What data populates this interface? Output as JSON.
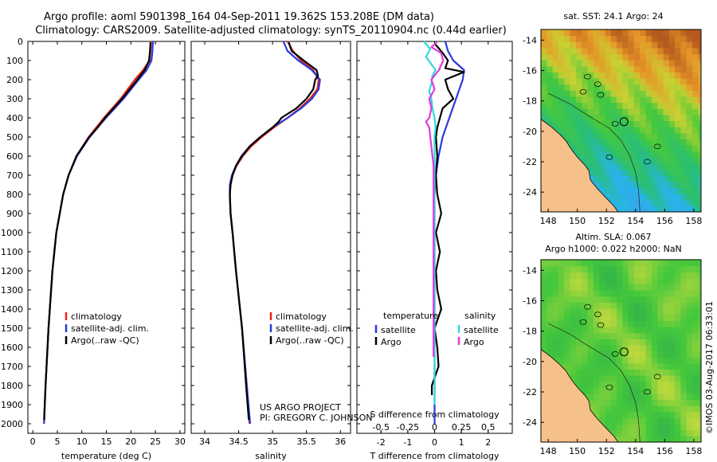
{
  "title": {
    "line1": "Argo profile: aoml 5901398_164 04-Sep-2011 19.362S 153.208E (DM data)",
    "line2": "Climatology: CARS2009. Satellite-adjusted climatology: synTS_20110904.nc (0.44d earlier)"
  },
  "colors": {
    "climatology": "#e8231b",
    "satellite": "#2a3bd8",
    "argo": "#000000",
    "salinity_sat": "#2fd8e0",
    "salinity_argo": "#e23ad8"
  },
  "chart_data": [
    {
      "type": "line",
      "name": "temperature-profile",
      "xlabel": "temperature (deg C)",
      "ylim": [
        0,
        2050
      ],
      "xlim": [
        -1,
        31
      ],
      "xticks": [
        0,
        5,
        10,
        15,
        20,
        25,
        30
      ],
      "yticks": [
        0,
        100,
        200,
        300,
        400,
        500,
        600,
        700,
        800,
        900,
        1000,
        1100,
        1200,
        1300,
        1400,
        1500,
        1600,
        1700,
        1800,
        1900,
        2000
      ],
      "legend": [
        "climatology",
        "satellite-adj. clim.",
        "Argo(..raw -QC)"
      ],
      "series": [
        {
          "name": "climatology",
          "depth": [
            0,
            50,
            100,
            150,
            200,
            300,
            400,
            500,
            600,
            700,
            800,
            1000,
            1200,
            1500,
            1800,
            2000
          ],
          "value": [
            24.1,
            24.0,
            23.8,
            22.5,
            20.8,
            17.9,
            14.5,
            11.4,
            8.9,
            7.3,
            6.2,
            4.8,
            4.0,
            3.2,
            2.6,
            2.3
          ]
        },
        {
          "name": "satellite-adj. clim.",
          "depth": [
            0,
            50,
            100,
            150,
            200,
            300,
            400,
            500,
            600,
            700,
            800,
            1000,
            1200,
            1500,
            1800,
            2000
          ],
          "value": [
            24.5,
            24.4,
            24.2,
            23.2,
            21.6,
            18.5,
            14.9,
            11.6,
            9.0,
            7.3,
            6.2,
            4.8,
            4.0,
            3.2,
            2.6,
            2.3
          ]
        },
        {
          "name": "Argo(..raw -QC)",
          "depth": [
            5,
            50,
            100,
            150,
            200,
            300,
            400,
            450,
            500,
            600,
            700,
            800,
            1000,
            1200,
            1500,
            1800,
            1980
          ],
          "value": [
            24.0,
            23.9,
            23.7,
            22.8,
            21.3,
            18.2,
            14.7,
            13.2,
            11.5,
            8.9,
            7.3,
            6.2,
            4.8,
            4.0,
            3.2,
            2.6,
            2.3
          ]
        }
      ]
    },
    {
      "type": "line",
      "name": "salinity-profile",
      "xlabel": "salinity",
      "ylim": [
        0,
        2050
      ],
      "xlim": [
        33.8,
        36.15
      ],
      "xticks": [
        34,
        34.5,
        35,
        35.5,
        36
      ],
      "xticklabels": [
        "34",
        "34.5",
        "35",
        "35.5",
        "36"
      ],
      "legend": [
        "climatology",
        "satellite-adj. clim.",
        "Argo(..raw -QC)"
      ],
      "annotation": [
        "US ARGO PROJECT",
        "PI: GREGORY C. JOHNSON"
      ],
      "series": [
        {
          "name": "climatology",
          "depth": [
            0,
            50,
            100,
            150,
            200,
            250,
            300,
            350,
            400,
            450,
            500,
            550,
            600,
            650,
            700,
            750,
            800,
            900,
            1000,
            1200,
            1500,
            1800,
            2000
          ],
          "value": [
            35.22,
            35.3,
            35.42,
            35.6,
            35.68,
            35.66,
            35.55,
            35.4,
            35.22,
            35.02,
            34.84,
            34.68,
            34.56,
            34.47,
            34.41,
            34.38,
            34.37,
            34.38,
            34.41,
            34.46,
            34.55,
            34.62,
            34.66
          ]
        },
        {
          "name": "satellite-adj. clim.",
          "depth": [
            0,
            50,
            100,
            150,
            200,
            250,
            300,
            350,
            400,
            450,
            500,
            550,
            600,
            650,
            700,
            750,
            800,
            900,
            1000,
            1200,
            1500,
            1800,
            2000
          ],
          "value": [
            35.16,
            35.22,
            35.38,
            35.58,
            35.7,
            35.68,
            35.58,
            35.42,
            35.22,
            35.0,
            34.82,
            34.66,
            34.54,
            34.46,
            34.4,
            34.37,
            34.37,
            34.38,
            34.41,
            34.46,
            34.55,
            34.62,
            34.67
          ]
        },
        {
          "name": "Argo(..raw -QC)",
          "depth": [
            5,
            50,
            100,
            150,
            180,
            200,
            250,
            300,
            350,
            400,
            420,
            450,
            500,
            550,
            600,
            650,
            700,
            750,
            800,
            900,
            1000,
            1200,
            1500,
            1800,
            1980
          ],
          "value": [
            35.24,
            35.28,
            35.46,
            35.65,
            35.67,
            35.63,
            35.6,
            35.5,
            35.35,
            35.13,
            35.09,
            35.0,
            34.82,
            34.66,
            34.55,
            34.46,
            34.41,
            34.38,
            34.37,
            34.38,
            34.41,
            34.46,
            34.55,
            34.61,
            34.65
          ]
        }
      ]
    },
    {
      "type": "line",
      "name": "difference-profile",
      "xlabel": "T difference from climatology",
      "x2label": "S difference from climatology",
      "ylim": [
        0,
        2050
      ],
      "xlim": [
        -2.9,
        2.9
      ],
      "xticks": [
        -2,
        -1,
        0,
        1,
        2
      ],
      "x2ticks": [
        -0.5,
        -0.25,
        0,
        0.25,
        0.5
      ],
      "x2ticklabels": [
        "-0.5",
        "-0.25",
        "0",
        "0.25",
        "0.5"
      ],
      "legend_temperature": {
        "header": "temperature",
        "items": [
          "satellite",
          "Argo"
        ]
      },
      "legend_salinity": {
        "header": "salinity",
        "items": [
          "satellite",
          "Argo"
        ]
      },
      "series": [
        {
          "name": "temperature satellite",
          "depth": [
            0,
            50,
            100,
            150,
            200,
            300,
            400,
            500,
            600,
            700,
            800,
            1000,
            1500,
            2000
          ],
          "value": [
            0.4,
            0.5,
            0.7,
            1.1,
            1.05,
            0.8,
            0.55,
            0.3,
            0.15,
            0.05,
            0.0,
            0.0,
            0.0,
            0.0
          ]
        },
        {
          "name": "temperature Argo",
          "depth": [
            10,
            60,
            100,
            140,
            160,
            200,
            250,
            300,
            350,
            400,
            450,
            500,
            600,
            700,
            800,
            900,
            1000,
            1100,
            1200,
            1300,
            1400,
            1500,
            1600,
            1700,
            1800,
            1850
          ],
          "value": [
            0.0,
            0.3,
            0.5,
            0.4,
            1.1,
            0.4,
            0.5,
            0.7,
            0.3,
            0.2,
            0.1,
            0.05,
            0.1,
            0.05,
            0.1,
            0.25,
            0.05,
            0.2,
            0.05,
            0.1,
            0.25,
            0.0,
            0.1,
            0.15,
            -0.1,
            -0.1
          ]
        },
        {
          "name": "salinity satellite",
          "depth": [
            0,
            40,
            80,
            120,
            150,
            180,
            220,
            260,
            300,
            350,
            400,
            450,
            500,
            600,
            800,
            1000,
            1500,
            1900
          ],
          "value": [
            -0.1,
            -0.04,
            -0.08,
            -0.03,
            0.01,
            -0.02,
            -0.03,
            -0.05,
            -0.03,
            -0.02,
            0.0,
            0.01,
            0.0,
            0.0,
            0.0,
            0.0,
            0.0,
            0.0
          ]
        },
        {
          "name": "salinity Argo",
          "depth": [
            5,
            30,
            60,
            100,
            150,
            200,
            250,
            300,
            350,
            400,
            420,
            450,
            500,
            550,
            600,
            650,
            700,
            800,
            1000,
            1200,
            1500,
            1650
          ],
          "value": [
            0.02,
            -0.03,
            0.06,
            0.08,
            0.04,
            -0.03,
            0.0,
            -0.05,
            -0.03,
            -0.05,
            -0.08,
            -0.05,
            -0.04,
            -0.03,
            -0.02,
            -0.01,
            -0.01,
            -0.01,
            -0.01,
            -0.01,
            -0.01,
            -0.01
          ]
        }
      ]
    },
    {
      "type": "heatmap",
      "name": "sst-map",
      "title": "sat. SST: 24.1 Argo: 24",
      "xlim": [
        147.5,
        158.5
      ],
      "ylim": [
        -25.3,
        -13.3
      ],
      "xticks": [
        148,
        150,
        152,
        154,
        156,
        158
      ],
      "yticks": [
        -14,
        -16,
        -18,
        -20,
        -22,
        -24
      ],
      "argo_location": [
        153.208,
        -19.362
      ]
    },
    {
      "type": "heatmap",
      "name": "sla-map",
      "title_line1": "Altim. SLA: 0.067",
      "title_line2": "Argo h1000: 0.022 h2000: NaN",
      "xlim": [
        147.5,
        158.5
      ],
      "ylim": [
        -25.3,
        -13.3
      ],
      "xticks": [
        148,
        150,
        152,
        154,
        156,
        158
      ],
      "yticks": [
        -14,
        -16,
        -18,
        -20,
        -22,
        -24
      ],
      "argo_location": [
        153.208,
        -19.362
      ]
    }
  ],
  "side_label": "©IMOS 03-Aug-2017 06:33:01"
}
